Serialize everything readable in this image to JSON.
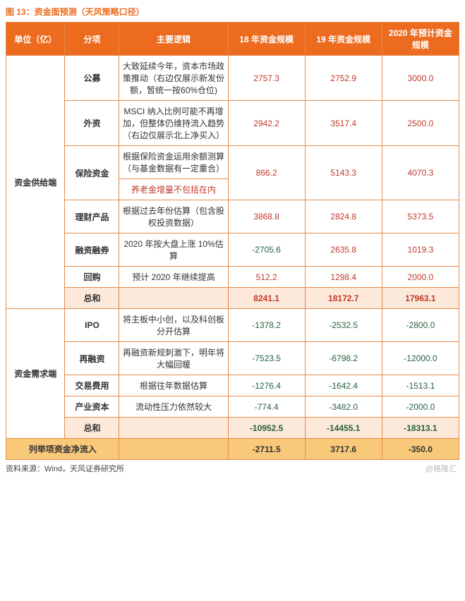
{
  "title": "图 13：资金面预测（天风策略口径）",
  "source": "资料来源：Wind，天风证券研究所",
  "watermark": "@格隆汇",
  "colors": {
    "header_bg": "#ec6b1f",
    "header_fg": "#ffffff",
    "border": "#e68a4a",
    "sum_bg": "#fce9da",
    "net_bg": "#f9c97a",
    "pos_value": "#c0392b",
    "neg_value": "#27613f"
  },
  "headers": {
    "unit": "单位（亿）",
    "category": "分项",
    "logic": "主要逻辑",
    "y18": "18 年资金规模",
    "y19": "19 年资金规模",
    "y20": "2020 年预计资金规模"
  },
  "groups": [
    {
      "unit": "资金供给端",
      "rows": [
        {
          "cat": "公募",
          "logic": "大致延续今年，资本市场政策推动（右边仅展示新发份额，暂统一按60%仓位)",
          "y18": "2757.3",
          "y19": "2752.9",
          "y20": "3000.0",
          "sign": "pos"
        },
        {
          "cat": "外资",
          "logic": "MSCI 纳入比例可能不再增加，但整体仍维持流入趋势（右边仅展示北上净买入）",
          "y18": "2942.2",
          "y19": "3517.4",
          "y20": "2500.0",
          "sign": "pos"
        },
        {
          "cat": "保险资金",
          "logic": "根据保险资金运用余额测算（与基金数据有一定重合）",
          "logic_extra": "养老金增量不包括在内",
          "y18": "866.2",
          "y19": "5143.3",
          "y20": "4070.3",
          "sign": "pos",
          "extra_row": true
        },
        {
          "cat": "理财产品",
          "logic": "根据过去年份估算（包含股权投资数据）",
          "y18": "3868.8",
          "y19": "2824.8",
          "y20": "5373.5",
          "sign": "pos"
        },
        {
          "cat": "融资融券",
          "logic": "2020 年按大盘上涨 10%估算",
          "y18": "-2705.6",
          "y19": "2635.8",
          "y20": "1019.3",
          "sign18": "neg",
          "sign": "pos"
        },
        {
          "cat": "回购",
          "logic": "预计 2020 年继续提高",
          "y18": "512.2",
          "y19": "1298.4",
          "y20": "2000.0",
          "sign": "pos"
        }
      ],
      "sum": {
        "label": "总和",
        "y18": "8241.1",
        "y19": "18172.7",
        "y20": "17963.1",
        "sign": "pos"
      }
    },
    {
      "unit": "资金需求端",
      "rows": [
        {
          "cat": "IPO",
          "logic": "将主板中小创，以及科创板分开估算",
          "y18": "-1378.2",
          "y19": "-2532.5",
          "y20": "-2800.0",
          "sign": "neg"
        },
        {
          "cat": "再融资",
          "logic": "再融资新规刺激下，明年将大幅回暖",
          "y18": "-7523.5",
          "y19": "-6798.2",
          "y20": "-12000.0",
          "sign": "neg"
        },
        {
          "cat": "交易费用",
          "logic": "根据往年数据估算",
          "y18": "-1276.4",
          "y19": "-1642.4",
          "y20": "-1513.1",
          "sign": "neg"
        },
        {
          "cat": "产业资本",
          "logic": "流动性压力依然较大",
          "y18": "-774.4",
          "y19": "-3482.0",
          "y20": "-2000.0",
          "sign": "neg"
        }
      ],
      "sum": {
        "label": "总和",
        "y18": "-10952.5",
        "y19": "-14455.1",
        "y20": "-18313.1",
        "sign": "neg"
      }
    }
  ],
  "net": {
    "label": "列举项资金净流入",
    "y18": "-2711.5",
    "y19": "3717.6",
    "y20": "-350.0"
  }
}
